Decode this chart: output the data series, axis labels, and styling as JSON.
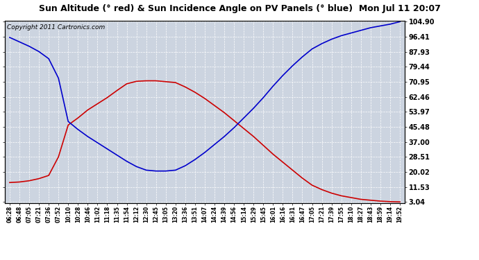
{
  "title": "Sun Altitude (° red) & Sun Incidence Angle on PV Panels (° blue)  Mon Jul 11 20:07",
  "copyright": "Copyright 2011 Cartronics.com",
  "figure_bg_color": "#ffffff",
  "plot_bg_color": "#ccd4e0",
  "grid_color": "#ffffff",
  "yticks": [
    3.04,
    11.53,
    20.02,
    28.51,
    37.0,
    45.48,
    53.97,
    62.46,
    70.95,
    79.44,
    87.93,
    96.41,
    104.9
  ],
  "xtick_labels": [
    "06:28",
    "06:48",
    "07:05",
    "07:21",
    "07:36",
    "07:52",
    "10:10",
    "10:28",
    "10:46",
    "11:02",
    "11:18",
    "11:35",
    "11:54",
    "12:12",
    "12:30",
    "12:45",
    "13:05",
    "13:20",
    "13:36",
    "13:51",
    "14:07",
    "14:24",
    "14:39",
    "14:56",
    "15:14",
    "15:29",
    "15:45",
    "16:01",
    "16:16",
    "16:31",
    "16:47",
    "17:05",
    "17:21",
    "17:39",
    "17:55",
    "18:10",
    "18:27",
    "18:43",
    "18:59",
    "19:14",
    "19:52"
  ],
  "red_y": [
    14.0,
    14.3,
    15.0,
    16.2,
    18.0,
    28.5,
    46.5,
    50.5,
    55.0,
    58.5,
    62.0,
    66.0,
    69.8,
    71.2,
    71.5,
    71.5,
    71.0,
    70.5,
    68.0,
    65.0,
    61.5,
    57.5,
    53.5,
    49.0,
    44.5,
    40.0,
    35.0,
    30.0,
    25.5,
    21.0,
    16.5,
    12.5,
    10.0,
    8.0,
    6.5,
    5.5,
    4.5,
    4.0,
    3.5,
    3.2,
    3.04
  ],
  "blue_y": [
    96.0,
    93.5,
    91.0,
    88.0,
    84.0,
    73.0,
    48.5,
    44.0,
    40.0,
    36.5,
    33.0,
    29.5,
    26.0,
    23.0,
    21.0,
    20.5,
    20.5,
    21.0,
    23.5,
    27.0,
    31.0,
    35.5,
    40.0,
    45.0,
    50.5,
    56.0,
    62.0,
    68.5,
    74.5,
    80.0,
    85.0,
    89.5,
    92.5,
    95.0,
    97.0,
    98.5,
    100.0,
    101.5,
    102.5,
    103.5,
    104.9
  ],
  "red_color": "#cc0000",
  "blue_color": "#0000cc",
  "ymin": 3.04,
  "ymax": 104.9,
  "title_fontsize": 9,
  "copyright_fontsize": 6.5,
  "tick_fontsize": 7,
  "xtick_fontsize": 5.5
}
